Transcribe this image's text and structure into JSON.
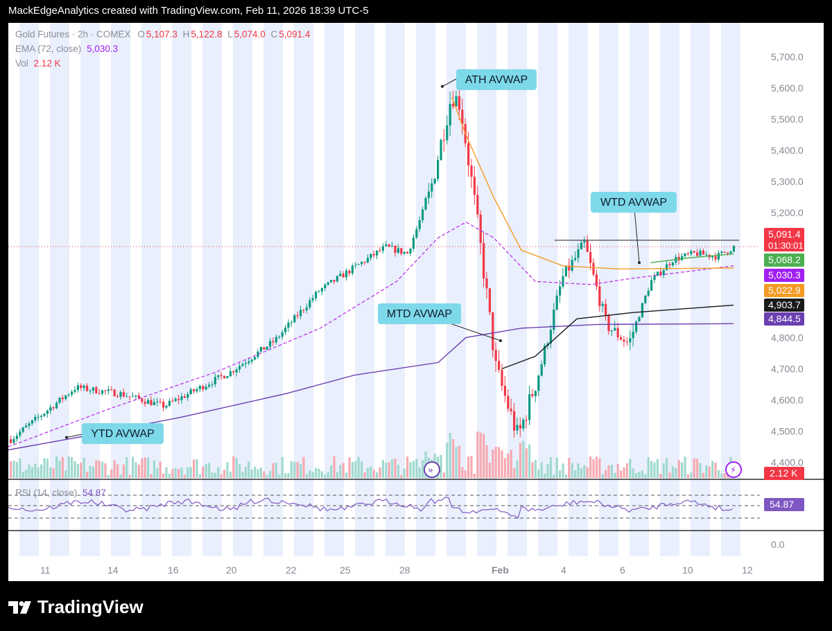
{
  "header": {
    "text": "MackEdgeAnalytics created with TradingView.com, Feb 11, 2026 18:39 UTC-5"
  },
  "legend": {
    "symbol": "Gold Futures · 2h · COMEX",
    "o_label": "O",
    "o": "5,107.3",
    "h_label": "H",
    "h": "5,122.8",
    "l_label": "L",
    "l": "5,074.0",
    "c_label": "C",
    "c": "5,091.4",
    "ema_label": "EMA (72, close)",
    "ema": "5,030.3",
    "vol_label": "Vol",
    "vol": "2.12 K",
    "rsi_label": "RSI (14, close)",
    "rsi": "54.87"
  },
  "footer": {
    "brand": "TradingView"
  },
  "colors": {
    "up": "#089981",
    "down": "#f23645",
    "ema": "#f59a23",
    "ath_avwap": "#c040e8",
    "mtd_avwap": "#6a3fb0",
    "wtd_avwap": "#1a1a1a",
    "ytd_avwap": "#6a3fb0",
    "green_ma": "#4caf50",
    "annotation_bg": "#7dd9ea",
    "session_band": "#e9effc"
  },
  "chart_data": {
    "type": "candlestick",
    "symbol": "Gold Futures",
    "interval": "2h",
    "exchange": "COMEX",
    "y_axis": {
      "min": 4350,
      "max": 5740,
      "ticks": [
        "5,700.0",
        "5,600.0",
        "5,500.0",
        "5,400.0",
        "5,300.0",
        "5,200.0",
        "5,100.0",
        "5,000.0",
        "4,900.0",
        "4,800.0",
        "4,700.0",
        "4,600.0",
        "4,500.0",
        "4,400.0"
      ]
    },
    "x_axis": {
      "ticks": [
        "11",
        "14",
        "16",
        "20",
        "22",
        "25",
        "28",
        "Feb",
        "4",
        "6",
        "10",
        "12"
      ]
    },
    "anchors": [
      [
        "2026-01-09",
        4470
      ],
      [
        "2026-01-12",
        4640
      ],
      [
        "2026-01-14",
        4620
      ],
      [
        "2026-01-16",
        4580
      ],
      [
        "2026-01-19",
        4690
      ],
      [
        "2026-01-21",
        4790
      ],
      [
        "2026-01-22",
        4870
      ],
      [
        "2026-01-23",
        4950
      ],
      [
        "2026-01-26",
        5090
      ],
      [
        "2026-01-27",
        5070
      ],
      [
        "2026-01-28",
        5260
      ],
      [
        "2026-01-29",
        5580
      ],
      [
        "2026-01-29",
        5550
      ],
      [
        "2026-01-30",
        5250
      ],
      [
        "2026-01-30",
        5050
      ],
      [
        "2026-01-31",
        4700
      ],
      [
        "2026-02-01",
        4480
      ],
      [
        "2026-02-02",
        4700
      ],
      [
        "2026-02-03",
        4990
      ],
      [
        "2026-02-04",
        5100
      ],
      [
        "2026-02-05",
        4840
      ],
      [
        "2026-02-06",
        4780
      ],
      [
        "2026-02-07",
        4980
      ],
      [
        "2026-02-08",
        5050
      ],
      [
        "2026-02-09",
        5070
      ],
      [
        "2026-02-10",
        5060
      ],
      [
        "2026-02-11",
        5091
      ]
    ],
    "price_labels": [
      {
        "name": "last-price",
        "value": "5,091.4",
        "countdown": "01:30:01",
        "bg": "#f23645"
      },
      {
        "name": "green-ma",
        "value": "5,068.2",
        "bg": "#4caf50"
      },
      {
        "name": "ema-72",
        "value": "5,030.3",
        "bg": "#a020f0"
      },
      {
        "name": "ath-avwap",
        "value": "5,022.9",
        "bg": "#f59a23"
      },
      {
        "name": "wtd-avwap",
        "value": "4,903.7",
        "bg": "#1a1a1a"
      },
      {
        "name": "mtd-avwap",
        "value": "4,844.5",
        "bg": "#6a3fb0"
      }
    ],
    "volume_label": "2.12 K",
    "annotations": [
      {
        "name": "ath-avwap-label",
        "text": "ATH AVWAP"
      },
      {
        "name": "mtd-avwap-label",
        "text": "MTD AVWAP"
      },
      {
        "name": "wtd-avwap-label",
        "text": "WTD AVWAP"
      },
      {
        "name": "ytd-avwap-label",
        "text": "YTD AVWAP"
      }
    ],
    "rsi": {
      "value": "54.87",
      "axis_tick": "0.0"
    }
  }
}
